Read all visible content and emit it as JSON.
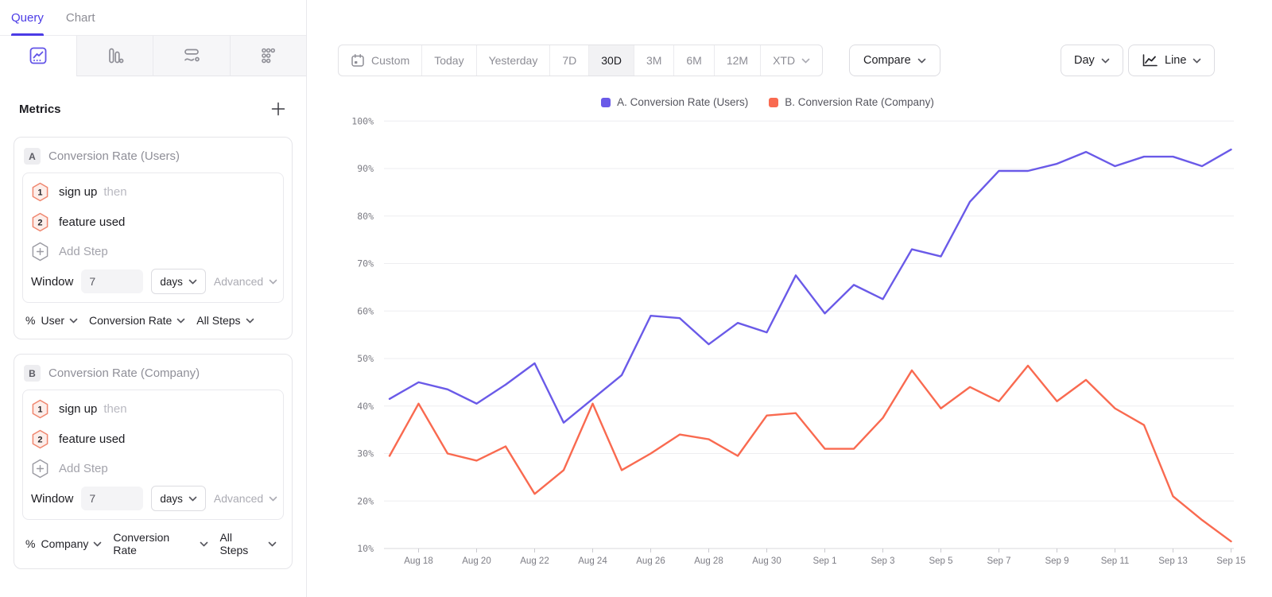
{
  "sidebar": {
    "tabs": [
      {
        "label": "Query"
      },
      {
        "label": "Chart"
      }
    ],
    "icon_tabs": [
      "insights-chart",
      "bar-chart",
      "flows",
      "retention-grid"
    ],
    "metrics": {
      "title": "Metrics",
      "add_label": "+",
      "cards": [
        {
          "letter": "A",
          "title": "Conversion Rate (Users)",
          "steps": [
            {
              "num": "1",
              "event": "sign up",
              "suffix": "then"
            },
            {
              "num": "2",
              "event": "feature used",
              "suffix": ""
            }
          ],
          "add_step_label": "Add Step",
          "window": {
            "label": "Window",
            "value": "7",
            "unit": "days",
            "advanced_label": "Advanced"
          },
          "measure": {
            "prefix": "%",
            "entity": "User",
            "metric": "Conversion Rate",
            "scope": "All Steps"
          }
        },
        {
          "letter": "B",
          "title": "Conversion Rate (Company)",
          "steps": [
            {
              "num": "1",
              "event": "sign up",
              "suffix": "then"
            },
            {
              "num": "2",
              "event": "feature used",
              "suffix": ""
            }
          ],
          "add_step_label": "Add Step",
          "window": {
            "label": "Window",
            "value": "7",
            "unit": "days",
            "advanced_label": "Advanced"
          },
          "measure": {
            "prefix": "%",
            "entity": "Company",
            "metric": "Conversion Rate",
            "scope": "All Steps"
          }
        }
      ]
    }
  },
  "toolbar": {
    "date_ranges": [
      "Custom",
      "Today",
      "Yesterday",
      "7D",
      "30D",
      "3M",
      "6M",
      "12M",
      "XTD"
    ],
    "active_range": "30D",
    "custom_has_calendar_icon": true,
    "xtd_has_chevron": true,
    "compare_label": "Compare",
    "granularity_label": "Day",
    "chart_type_label": "Line"
  },
  "chart_data": {
    "type": "line",
    "x": [
      "Aug 17",
      "Aug 18",
      "Aug 19",
      "Aug 20",
      "Aug 21",
      "Aug 22",
      "Aug 23",
      "Aug 24",
      "Aug 25",
      "Aug 26",
      "Aug 27",
      "Aug 28",
      "Aug 29",
      "Aug 30",
      "Aug 31",
      "Sep 1",
      "Sep 2",
      "Sep 3",
      "Sep 4",
      "Sep 5",
      "Sep 6",
      "Sep 7",
      "Sep 8",
      "Sep 9",
      "Sep 10",
      "Sep 11",
      "Sep 12",
      "Sep 13",
      "Sep 14",
      "Sep 15"
    ],
    "x_tick_labels": [
      "Aug 18",
      "Aug 20",
      "Aug 22",
      "Aug 24",
      "Aug 26",
      "Aug 28",
      "Aug 30",
      "Sep 1",
      "Sep 3",
      "Sep 5",
      "Sep 7",
      "Sep 9",
      "Sep 11",
      "Sep 13",
      "Sep 15"
    ],
    "series": [
      {
        "name": "A. Conversion Rate (Users)",
        "color": "#6A5AE8",
        "values": [
          41.5,
          45,
          43.5,
          40.5,
          44.5,
          49,
          36.5,
          41.5,
          46.5,
          59,
          58.5,
          53,
          57.5,
          55.5,
          67.5,
          59.5,
          65.5,
          62.5,
          73,
          71.5,
          83,
          89.5,
          89.5,
          91,
          93.5,
          90.5,
          92.5,
          92.5,
          90.5,
          94
        ]
      },
      {
        "name": "B. Conversion Rate (Company)",
        "color": "#F96A50",
        "values": [
          29.5,
          40.5,
          30,
          28.5,
          31.5,
          21.5,
          26.5,
          40.5,
          26.5,
          30,
          34,
          33,
          29.5,
          38,
          38.5,
          31,
          31,
          37.5,
          47.5,
          39.5,
          44,
          41,
          48.5,
          41,
          45.5,
          39.5,
          36,
          21,
          16,
          11.5
        ]
      }
    ],
    "y_ticks": [
      "10%",
      "20%",
      "30%",
      "40%",
      "50%",
      "60%",
      "70%",
      "80%",
      "90%",
      "100%"
    ],
    "ylim": [
      10,
      100
    ],
    "unit": "%",
    "grid": "horizontal",
    "legend_position": "top-center"
  }
}
